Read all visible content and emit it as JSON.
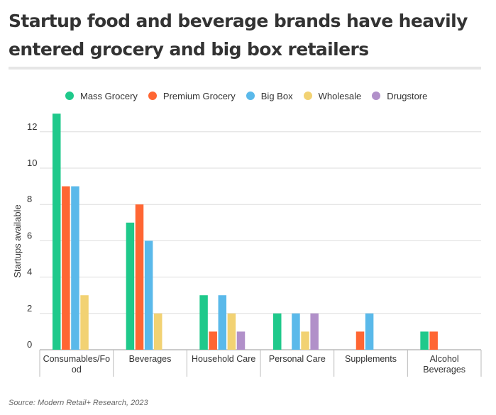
{
  "header": {
    "title": "Startup food and beverage brands have heavily entered grocery and big box retailers"
  },
  "source": "Source: Modern Retail+ Research, 2023",
  "chart_data": {
    "type": "bar",
    "title": "Startup food and beverage brands have heavily entered grocery and big box retailers",
    "ylabel": "Startups available",
    "xlabel": "",
    "ylim": [
      0,
      13
    ],
    "yticks": [
      0,
      2,
      4,
      6,
      8,
      10,
      12
    ],
    "grid": true,
    "legend_position": "top",
    "categories": [
      [
        "Consumables/Fo",
        "od"
      ],
      [
        "Beverages"
      ],
      [
        "Household Care"
      ],
      [
        "Personal Care"
      ],
      [
        "Supplements"
      ],
      [
        "Alcohol",
        "Beverages"
      ]
    ],
    "series": [
      {
        "name": "Mass Grocery",
        "color": "#1fc98b",
        "values": [
          13,
          7,
          3,
          2,
          0,
          1
        ]
      },
      {
        "name": "Premium Grocery",
        "color": "#ff6633",
        "values": [
          9,
          8,
          1,
          0,
          1,
          1
        ]
      },
      {
        "name": "Big Box",
        "color": "#5ab9ea",
        "values": [
          9,
          6,
          3,
          2,
          2,
          0
        ]
      },
      {
        "name": "Wholesale",
        "color": "#f2d273",
        "values": [
          3,
          2,
          2,
          1,
          0,
          0
        ]
      },
      {
        "name": "Drugstore",
        "color": "#b190c9",
        "values": [
          0,
          0,
          1,
          2,
          0,
          0
        ]
      }
    ]
  }
}
